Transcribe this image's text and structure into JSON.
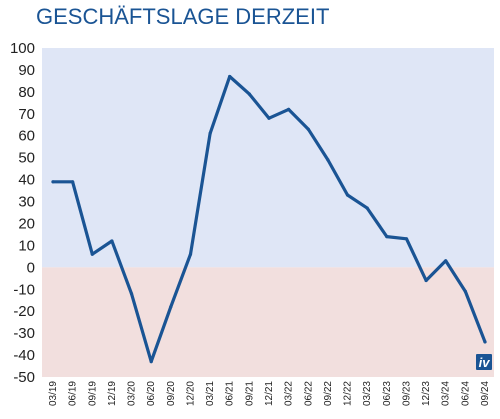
{
  "chart_data": {
    "type": "line",
    "title": "GESCHÄFTSLAGE DERZEIT",
    "xlabel": "",
    "ylabel": "",
    "ylim": [
      -50,
      100
    ],
    "yticks": [
      100,
      90,
      80,
      70,
      60,
      50,
      40,
      30,
      20,
      10,
      0,
      -10,
      -20,
      -30,
      -40,
      -50
    ],
    "categories": [
      "03/19",
      "06/19",
      "09/19",
      "12/19",
      "03/20",
      "06/20",
      "09/20",
      "12/20",
      "03/21",
      "06/21",
      "09/21",
      "12/21",
      "03/22",
      "06/22",
      "09/22",
      "12/22",
      "03/23",
      "06/23",
      "09/23",
      "12/23",
      "03/24",
      "06/24",
      "09/24"
    ],
    "values": [
      39,
      39,
      6,
      12,
      -12,
      -43,
      -18,
      6,
      61,
      87,
      79,
      68,
      72,
      63,
      49,
      33,
      27,
      14,
      13,
      -6,
      3,
      -11,
      -34
    ],
    "grid": false,
    "legend": "none",
    "background": {
      "positive": "#dfe6f6",
      "negative": "#f2dfde"
    },
    "line_color": "#1a5494"
  },
  "logo": {
    "text": "iv",
    "color": "#1a5494"
  }
}
